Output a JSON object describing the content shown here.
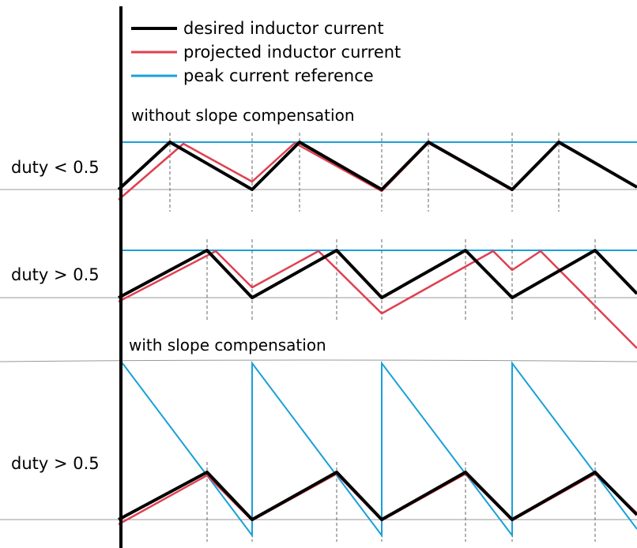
{
  "legend": {
    "desired": "desired inductor current",
    "projected": "projected inductor current",
    "reference": "peak current reference"
  },
  "sections": {
    "without": "without slope compensation",
    "with": "with slope compensation"
  },
  "panels": {
    "a": {
      "duty_label": "duty < 0.5"
    },
    "b": {
      "duty_label": "duty > 0.5"
    },
    "c": {
      "duty_label": "duty > 0.5"
    }
  },
  "colors": {
    "desired": "#000000",
    "projected": "#e04050",
    "reference": "#1aa0d8",
    "baseline": "#999999",
    "dashed": "#666666",
    "axis": "#000000"
  }
}
